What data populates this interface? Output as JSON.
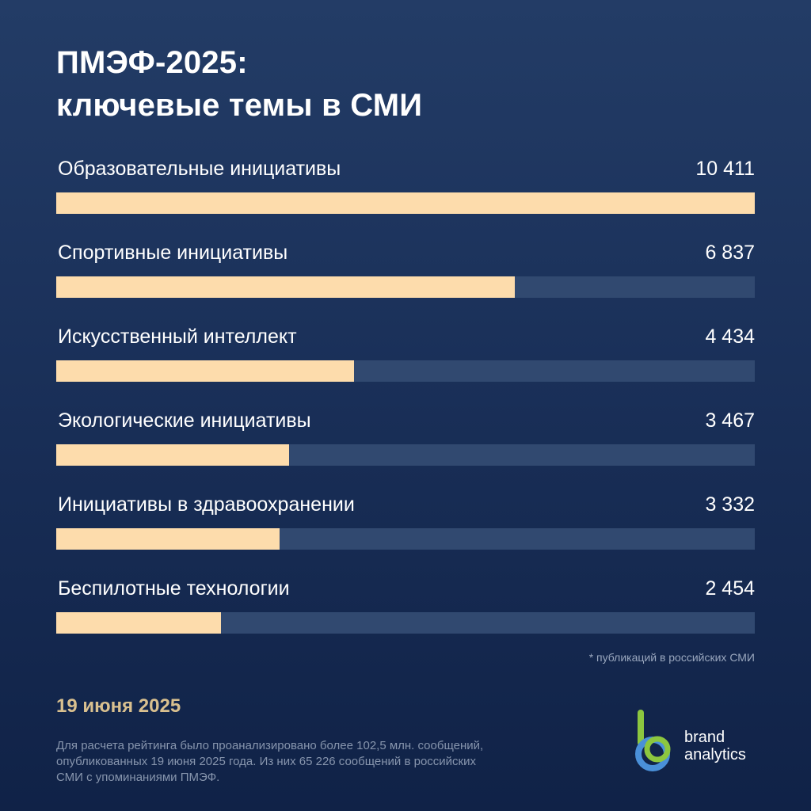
{
  "title": {
    "line1": "ПМЭФ-2025:",
    "line2": "ключевые темы в СМИ"
  },
  "chart_data": {
    "type": "bar",
    "orientation": "horizontal",
    "categories": [
      "Образовательные инициативы",
      "Спортивные инициативы",
      "Искусственный интеллект",
      "Экологические инициативы",
      "Инициативы в здравоохранении",
      "Беспилотные технологии"
    ],
    "values": [
      10411,
      6837,
      4434,
      3467,
      3332,
      2454
    ],
    "value_labels": [
      "10 411",
      "6 837",
      "4 434",
      "3 467",
      "3 332",
      "2 454"
    ],
    "bar_color": "#fddcac",
    "track_color": "#314970",
    "grid": false
  },
  "footnote": "* публикаций в российских СМИ",
  "date": "19 июня 2025",
  "methodology": {
    "line1": "Для расчета рейтинга было проанализировано более 102,5 млн. сообщений,",
    "line2": "опубликованных 19 июня 2025 года. Из них 65 226 сообщений в российских",
    "line3": "СМИ с упоминаниями ПМЭФ."
  },
  "logo": {
    "line1": "brand",
    "line2": "analytics",
    "icon": "brand-analytics-logo",
    "colors": {
      "green": "#8cc63f",
      "blue": "#4a90d9"
    }
  }
}
